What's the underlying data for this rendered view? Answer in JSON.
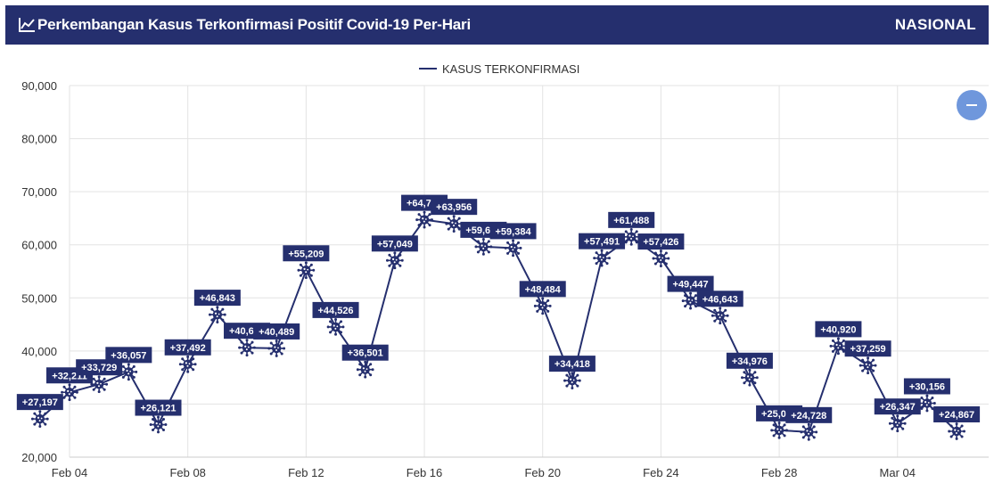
{
  "header": {
    "title": "Perkembangan Kasus Terkonfirmasi Positif Covid-19 Per-Hari",
    "region": "NASIONAL"
  },
  "colors": {
    "header_bg": "#252f6e",
    "line": "#252f6e",
    "label_bg": "#252f6e",
    "zoom_button": "#6f97dc"
  },
  "zoom_button": {
    "icon": "minus-icon"
  },
  "chart_data": {
    "type": "line",
    "legend": {
      "position": "top-center",
      "entries": [
        "KASUS TERKONFIRMASI"
      ]
    },
    "grid": true,
    "ylim": [
      20000,
      90000
    ],
    "yticks": [
      "20,000",
      "30,000",
      "40,000",
      "50,000",
      "60,000",
      "70,000",
      "80,000",
      "90,000"
    ],
    "xticks": [
      "Feb 04",
      "Feb 08",
      "Feb 12",
      "Feb 16",
      "Feb 20",
      "Feb 24",
      "Feb 28",
      "Mar 04"
    ],
    "marker": "virus-icon",
    "series": [
      {
        "name": "KASUS TERKONFIRMASI",
        "x": [
          "2022-02-03",
          "2022-02-04",
          "2022-02-05",
          "2022-02-06",
          "2022-02-07",
          "2022-02-08",
          "2022-02-09",
          "2022-02-10",
          "2022-02-11",
          "2022-02-12",
          "2022-02-13",
          "2022-02-14",
          "2022-02-15",
          "2022-02-16",
          "2022-02-17",
          "2022-02-18",
          "2022-02-19",
          "2022-02-20",
          "2022-02-21",
          "2022-02-22",
          "2022-02-23",
          "2022-02-24",
          "2022-02-25",
          "2022-02-26",
          "2022-02-27",
          "2022-02-28",
          "2022-03-01",
          "2022-03-02",
          "2022-03-03",
          "2022-03-04",
          "2022-03-05",
          "2022-03-06"
        ],
        "values": [
          27197,
          32211,
          33729,
          36057,
          26121,
          37492,
          46843,
          40618,
          40489,
          55209,
          44526,
          36501,
          57049,
          64718,
          63956,
          59635,
          59384,
          48484,
          34418,
          57491,
          61488,
          57426,
          49447,
          46643,
          34976,
          25054,
          24728,
          40920,
          37259,
          26347,
          30156,
          24867
        ],
        "labels": [
          "+27,197",
          "+32,211",
          "+33,729",
          "+36,057",
          "+26,121",
          "+37,492",
          "+46,843",
          "+40,618",
          "+40,489",
          "+55,209",
          "+44,526",
          "+36,501",
          "+57,049",
          "+64,718",
          "+63,956",
          "+59,635",
          "+59,384",
          "+48,484",
          "+34,418",
          "+57,491",
          "+61,488",
          "+57,426",
          "+49,447",
          "+46,643",
          "+34,976",
          "+25,054",
          "+24,728",
          "+40,920",
          "+37,259",
          "+26,347",
          "+30,156",
          "+24,867"
        ]
      }
    ]
  }
}
